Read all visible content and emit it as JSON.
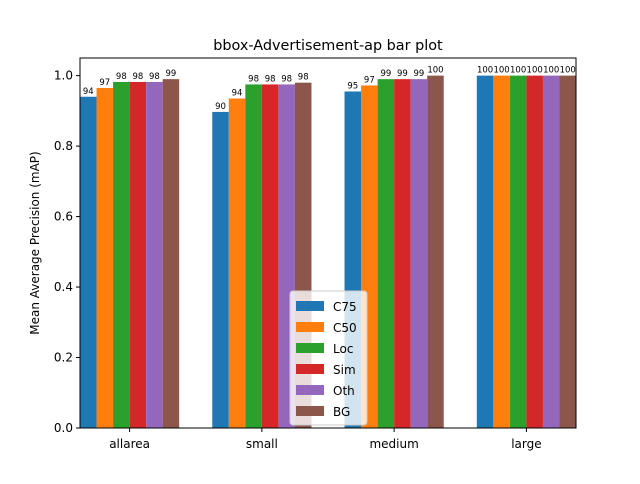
{
  "chart_data": {
    "type": "bar",
    "title": "bbox-Advertisement-ap bar plot",
    "xlabel": "",
    "ylabel": "Mean Average Precision (mAP)",
    "categories": [
      "allarea",
      "small",
      "medium",
      "large"
    ],
    "ylim": [
      0,
      1.05
    ],
    "yticks": [
      "0.0",
      "0.2",
      "0.4",
      "0.6",
      "0.8",
      "1.0"
    ],
    "grid": false,
    "legend_position": "lower-center",
    "series": [
      {
        "name": "C75",
        "color": "#1f77b4",
        "values": [
          0.94,
          0.897,
          0.955,
          1.0
        ],
        "labels": [
          "94",
          "90",
          "95",
          "100"
        ]
      },
      {
        "name": "C50",
        "color": "#ff7f0e",
        "values": [
          0.965,
          0.935,
          0.972,
          1.0
        ],
        "labels": [
          "97",
          "94",
          "97",
          "100"
        ]
      },
      {
        "name": "Loc",
        "color": "#2ca02c",
        "values": [
          0.982,
          0.975,
          0.99,
          1.0
        ],
        "labels": [
          "98",
          "98",
          "99",
          "100"
        ]
      },
      {
        "name": "Sim",
        "color": "#d62728",
        "values": [
          0.982,
          0.975,
          0.99,
          1.0
        ],
        "labels": [
          "98",
          "98",
          "99",
          "100"
        ]
      },
      {
        "name": "Oth",
        "color": "#9467bd",
        "values": [
          0.982,
          0.975,
          0.99,
          1.0
        ],
        "labels": [
          "98",
          "98",
          "99",
          "100"
        ]
      },
      {
        "name": "BG",
        "color": "#8c564b",
        "values": [
          0.99,
          0.98,
          1.0,
          1.0
        ],
        "labels": [
          "99",
          "98",
          "100",
          "100"
        ]
      }
    ]
  }
}
